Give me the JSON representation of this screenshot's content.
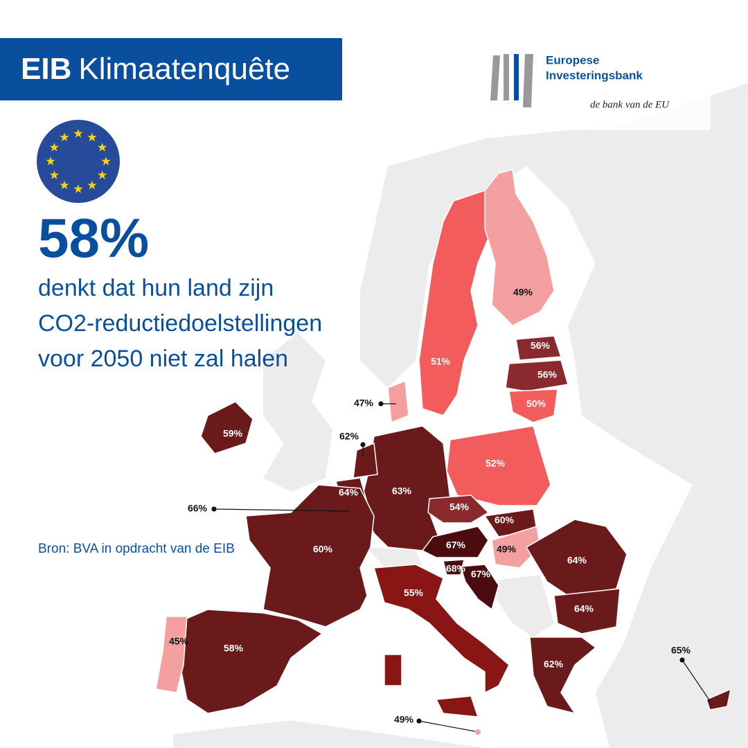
{
  "header": {
    "title_bold": "EIB",
    "title_rest": "Klimaatenquête"
  },
  "logo": {
    "line1": "Europese",
    "line2": "Investeringsbank",
    "tagline": "de bank van de EU"
  },
  "headline": {
    "value": "58%",
    "text_lines": [
      "denkt dat hun land zijn",
      "CO2-reductiedoelstellingen",
      "voor 2050 niet zal halen"
    ]
  },
  "source": "Bron: BVA in opdracht van de EIB",
  "map": {
    "labels": [
      "49%",
      "56%",
      "56%",
      "50%",
      "51%",
      "47%",
      "59%",
      "62%",
      "64%",
      "66%",
      "63%",
      "52%",
      "54%",
      "60%",
      "67%",
      "49%",
      "64%",
      "64%",
      "68%",
      "67%",
      "55%",
      "60%",
      "45%",
      "58%",
      "62%",
      "65%",
      "49%"
    ]
  }
}
